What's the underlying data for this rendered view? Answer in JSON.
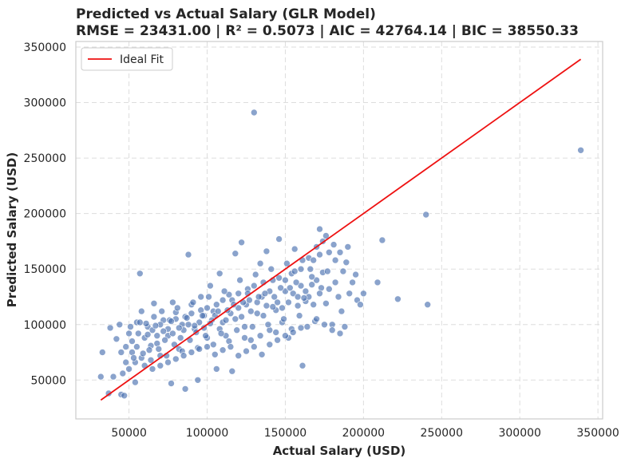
{
  "chart_data": {
    "type": "scatter",
    "title_line1": "Predicted vs Actual Salary (GLR Model)",
    "title_line2": "RMSE = 23431.00 | R² = 0.5073 | AIC = 42764.14 | BIC = 38550.33",
    "xlabel": "Actual Salary (USD)",
    "ylabel": "Predicted Salary (USD)",
    "xlim": [
      16000,
      353000
    ],
    "ylim": [
      15000,
      355000
    ],
    "xticks": [
      50000,
      100000,
      150000,
      200000,
      250000,
      300000,
      350000
    ],
    "yticks": [
      50000,
      100000,
      150000,
      200000,
      250000,
      300000,
      350000
    ],
    "grid": true,
    "legend_position": "upper-left",
    "legend": [
      {
        "label": "Ideal Fit",
        "color": "#ee1111"
      }
    ],
    "ideal_fit": {
      "x": [
        32000,
        339000
      ],
      "y": [
        32000,
        339000
      ]
    },
    "point_color": "#4c72b0",
    "points": [
      [
        32000,
        53000
      ],
      [
        33000,
        75000
      ],
      [
        37000,
        38000
      ],
      [
        38000,
        97000
      ],
      [
        40000,
        53000
      ],
      [
        42000,
        87000
      ],
      [
        44000,
        100000
      ],
      [
        45000,
        37000
      ],
      [
        46000,
        56000
      ],
      [
        47000,
        36000
      ],
      [
        48000,
        66000
      ],
      [
        50000,
        92000
      ],
      [
        52000,
        75000
      ],
      [
        54000,
        48000
      ],
      [
        55000,
        102000
      ],
      [
        57000,
        146000
      ],
      [
        58000,
        112000
      ],
      [
        60000,
        63000
      ],
      [
        62000,
        98000
      ],
      [
        64000,
        81000
      ],
      [
        66000,
        119000
      ],
      [
        68000,
        90000
      ],
      [
        70000,
        72000
      ],
      [
        72000,
        104000
      ],
      [
        75000,
        96000
      ],
      [
        77000,
        47000
      ],
      [
        78000,
        120000
      ],
      [
        80000,
        111000
      ],
      [
        82000,
        78000
      ],
      [
        84000,
        100000
      ],
      [
        86000,
        42000
      ],
      [
        88000,
        163000
      ],
      [
        90000,
        118000
      ],
      [
        92000,
        96000
      ],
      [
        94000,
        50000
      ],
      [
        96000,
        125000
      ],
      [
        98000,
        108000
      ],
      [
        100000,
        88000
      ],
      [
        102000,
        135000
      ],
      [
        104000,
        112000
      ],
      [
        106000,
        60000
      ],
      [
        108000,
        146000
      ],
      [
        110000,
        102000
      ],
      [
        112000,
        90000
      ],
      [
        114000,
        127000
      ],
      [
        116000,
        58000
      ],
      [
        118000,
        164000
      ],
      [
        120000,
        115000
      ],
      [
        122000,
        174000
      ],
      [
        124000,
        98000
      ],
      [
        126000,
        132000
      ],
      [
        128000,
        86000
      ],
      [
        130000,
        291000
      ],
      [
        132000,
        120000
      ],
      [
        134000,
        155000
      ],
      [
        136000,
        108000
      ],
      [
        138000,
        166000
      ],
      [
        140000,
        95000
      ],
      [
        142000,
        140000
      ],
      [
        144000,
        113000
      ],
      [
        146000,
        177000
      ],
      [
        148000,
        102000
      ],
      [
        150000,
        130000
      ],
      [
        152000,
        88000
      ],
      [
        154000,
        146000
      ],
      [
        156000,
        168000
      ],
      [
        158000,
        117000
      ],
      [
        160000,
        150000
      ],
      [
        161000,
        63000
      ],
      [
        163000,
        121000
      ],
      [
        165000,
        160000
      ],
      [
        167000,
        136000
      ],
      [
        169000,
        103000
      ],
      [
        170000,
        170000
      ],
      [
        172000,
        186000
      ],
      [
        174000,
        147000
      ],
      [
        176000,
        119000
      ],
      [
        178000,
        132000
      ],
      [
        180000,
        100000
      ],
      [
        182000,
        158000
      ],
      [
        184000,
        125000
      ],
      [
        186000,
        112000
      ],
      [
        188000,
        98000
      ],
      [
        190000,
        170000
      ],
      [
        193000,
        138000
      ],
      [
        196000,
        122000
      ],
      [
        200000,
        128000
      ],
      [
        209000,
        138000
      ],
      [
        212000,
        176000
      ],
      [
        222000,
        123000
      ],
      [
        240000,
        199000
      ],
      [
        241000,
        118000
      ],
      [
        339000,
        257000
      ],
      [
        55000,
        80000
      ],
      [
        60000,
        88000
      ],
      [
        65000,
        95000
      ],
      [
        70000,
        100000
      ],
      [
        75000,
        90000
      ],
      [
        80000,
        105000
      ],
      [
        85000,
        95000
      ],
      [
        90000,
        110000
      ],
      [
        95000,
        102000
      ],
      [
        100000,
        115000
      ],
      [
        105000,
        108000
      ],
      [
        110000,
        122000
      ],
      [
        115000,
        110000
      ],
      [
        120000,
        128000
      ],
      [
        125000,
        118000
      ],
      [
        130000,
        135000
      ],
      [
        135000,
        125000
      ],
      [
        140000,
        130000
      ],
      [
        145000,
        120000
      ],
      [
        150000,
        140000
      ],
      [
        155000,
        128000
      ],
      [
        160000,
        135000
      ],
      [
        165000,
        125000
      ],
      [
        170000,
        140000
      ],
      [
        58000,
        70000
      ],
      [
        63000,
        77000
      ],
      [
        68000,
        83000
      ],
      [
        73000,
        86000
      ],
      [
        78000,
        92000
      ],
      [
        83000,
        88000
      ],
      [
        88000,
        100000
      ],
      [
        93000,
        93000
      ],
      [
        98000,
        97000
      ],
      [
        103000,
        104000
      ],
      [
        108000,
        96000
      ],
      [
        113000,
        113000
      ],
      [
        118000,
        105000
      ],
      [
        123000,
        120000
      ],
      [
        128000,
        112000
      ],
      [
        133000,
        125000
      ],
      [
        138000,
        117000
      ],
      [
        143000,
        125000
      ],
      [
        148000,
        115000
      ],
      [
        153000,
        133000
      ],
      [
        158000,
        125000
      ],
      [
        163000,
        130000
      ],
      [
        168000,
        118000
      ],
      [
        173000,
        133000
      ],
      [
        52000,
        85000
      ],
      [
        56000,
        92000
      ],
      [
        61000,
        101000
      ],
      [
        66000,
        107000
      ],
      [
        71000,
        112000
      ],
      [
        76000,
        104000
      ],
      [
        81000,
        115000
      ],
      [
        86000,
        107000
      ],
      [
        91000,
        120000
      ],
      [
        96000,
        113000
      ],
      [
        101000,
        125000
      ],
      [
        106000,
        118000
      ],
      [
        111000,
        130000
      ],
      [
        116000,
        122000
      ],
      [
        121000,
        140000
      ],
      [
        126000,
        128000
      ],
      [
        131000,
        145000
      ],
      [
        136000,
        138000
      ],
      [
        141000,
        150000
      ],
      [
        146000,
        142000
      ],
      [
        151000,
        155000
      ],
      [
        156000,
        148000
      ],
      [
        161000,
        158000
      ],
      [
        166000,
        150000
      ],
      [
        50000,
        60000
      ],
      [
        54000,
        66000
      ],
      [
        59000,
        74000
      ],
      [
        64000,
        68000
      ],
      [
        69000,
        78000
      ],
      [
        74000,
        72000
      ],
      [
        79000,
        82000
      ],
      [
        84000,
        76000
      ],
      [
        89000,
        86000
      ],
      [
        94000,
        79000
      ],
      [
        99000,
        90000
      ],
      [
        104000,
        82000
      ],
      [
        109000,
        92000
      ],
      [
        114000,
        85000
      ],
      [
        119000,
        95000
      ],
      [
        124000,
        88000
      ],
      [
        129000,
        98000
      ],
      [
        134000,
        90000
      ],
      [
        139000,
        100000
      ],
      [
        144000,
        93000
      ],
      [
        149000,
        105000
      ],
      [
        154000,
        96000
      ],
      [
        159000,
        108000
      ],
      [
        164000,
        98000
      ],
      [
        45000,
        75000
      ],
      [
        48000,
        80000
      ],
      [
        51000,
        98000
      ],
      [
        53000,
        70000
      ],
      [
        57000,
        102000
      ],
      [
        62000,
        91000
      ],
      [
        67000,
        99000
      ],
      [
        72000,
        94000
      ],
      [
        77000,
        103000
      ],
      [
        82000,
        97000
      ],
      [
        87000,
        106000
      ],
      [
        92000,
        99000
      ],
      [
        97000,
        108000
      ],
      [
        102000,
        101000
      ],
      [
        107000,
        112000
      ],
      [
        112000,
        104000
      ],
      [
        117000,
        118000
      ],
      [
        122000,
        107000
      ],
      [
        127000,
        122000
      ],
      [
        132000,
        110000
      ],
      [
        137000,
        128000
      ],
      [
        142000,
        116000
      ],
      [
        147000,
        133000
      ],
      [
        152000,
        120000
      ],
      [
        157000,
        138000
      ],
      [
        162000,
        124000
      ],
      [
        167000,
        143000
      ],
      [
        172000,
        128000
      ],
      [
        177000,
        148000
      ],
      [
        182000,
        138000
      ],
      [
        185000,
        165000
      ],
      [
        187000,
        148000
      ],
      [
        189000,
        156000
      ],
      [
        191000,
        128000
      ],
      [
        195000,
        145000
      ],
      [
        198000,
        118000
      ],
      [
        174000,
        175000
      ],
      [
        176000,
        180000
      ],
      [
        172000,
        163000
      ],
      [
        178000,
        165000
      ],
      [
        168000,
        158000
      ],
      [
        181000,
        172000
      ],
      [
        65000,
        60000
      ],
      [
        70000,
        63000
      ],
      [
        75000,
        66000
      ],
      [
        80000,
        69000
      ],
      [
        85000,
        72000
      ],
      [
        90000,
        75000
      ],
      [
        95000,
        78000
      ],
      [
        100000,
        80000
      ],
      [
        105000,
        73000
      ],
      [
        110000,
        77000
      ],
      [
        115000,
        80000
      ],
      [
        120000,
        72000
      ],
      [
        125000,
        76000
      ],
      [
        130000,
        80000
      ],
      [
        135000,
        73000
      ],
      [
        140000,
        82000
      ],
      [
        145000,
        86000
      ],
      [
        150000,
        90000
      ],
      [
        155000,
        93000
      ],
      [
        160000,
        97000
      ],
      [
        170000,
        105000
      ],
      [
        175000,
        100000
      ],
      [
        180000,
        95000
      ],
      [
        185000,
        92000
      ]
    ]
  }
}
